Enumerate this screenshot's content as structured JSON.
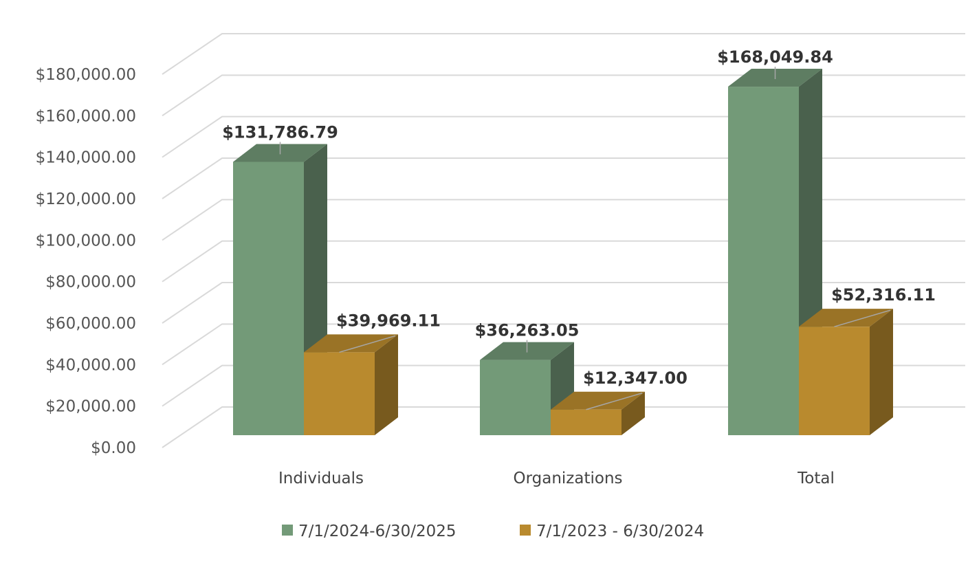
{
  "chart_data": {
    "type": "bar",
    "categories": [
      "Individuals",
      "Organizations",
      "Total"
    ],
    "series": [
      {
        "name": "7/1/2024-6/30/2025",
        "values": [
          131786.79,
          36263.05,
          168049.84
        ],
        "labels": [
          "$131,786.79",
          "$36,263.05",
          "$168,049.84"
        ]
      },
      {
        "name": "7/1/2023 - 6/30/2024",
        "values": [
          39969.11,
          12347.0,
          52316.11
        ],
        "labels": [
          "$39,969.11",
          "$12,347.00",
          "$52,316.11"
        ]
      }
    ],
    "ylim": [
      0,
      180000
    ],
    "yticks": [
      "$0.00",
      "$20,000.00",
      "$40,000.00",
      "$60,000.00",
      "$80,000.00",
      "$100,000.00",
      "$120,000.00",
      "$140,000.00",
      "$160,000.00",
      "$180,000.00"
    ],
    "grid": true,
    "legend": "bottom",
    "style": "3d-clustered-column"
  },
  "colors": {
    "series1_front": "#739a78",
    "series1_side": "#4a614d",
    "series1_top": "#5e7d62",
    "series2_front": "#b98a2e",
    "series2_side": "#785a1e",
    "series2_top": "#9a7326"
  }
}
